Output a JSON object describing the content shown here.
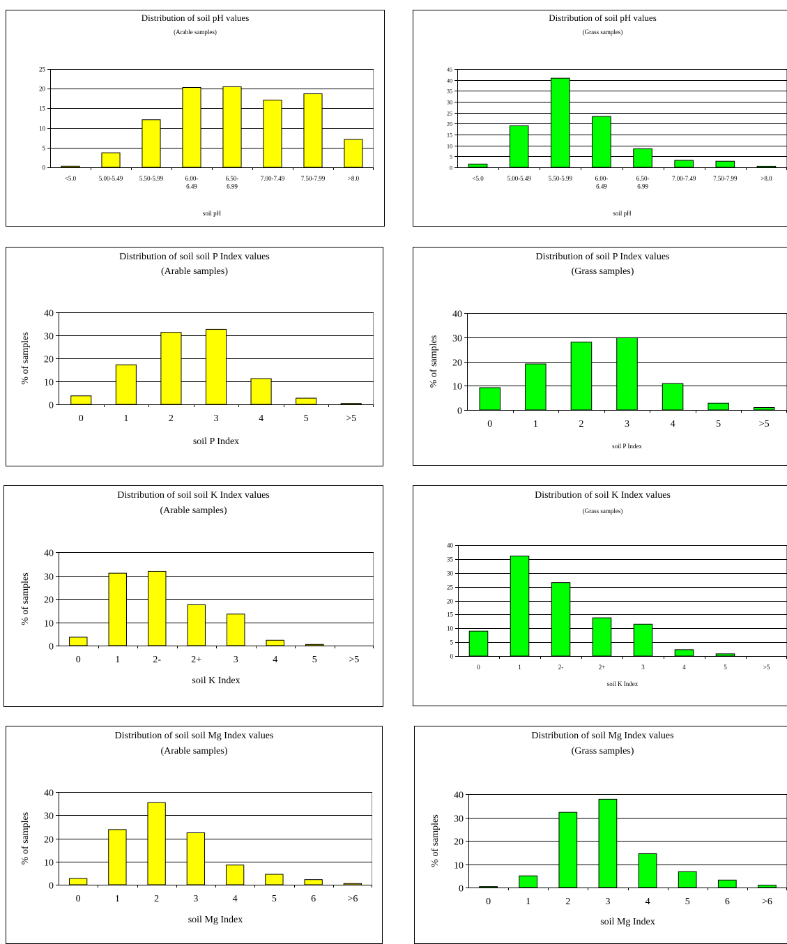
{
  "colors": {
    "arable": "#ffff00",
    "grass": "#00ff00",
    "outline": "#000000",
    "gridline": "#000000"
  },
  "chart_data": [
    {
      "id": "ph-arable",
      "type": "bar",
      "title": "Distribution of soil pH values",
      "subtitle": "(Arable samples)",
      "xlabel": "soil pH",
      "ylabel": "",
      "categories": [
        "<5.0",
        "5.00-5.49",
        "5.50-5.99",
        "6.00-\n6.49",
        "6.50-\n6.99",
        "7.00-7.49",
        "7.50-7.99",
        ">8.0"
      ],
      "values": [
        0.3,
        3.7,
        12.1,
        20.3,
        20.5,
        17.1,
        18.7,
        7.1
      ],
      "ylim": [
        0,
        25
      ],
      "yticks": [
        0,
        5,
        10,
        15,
        20,
        25
      ],
      "grid": true,
      "legend": "none",
      "color": "arable"
    },
    {
      "id": "ph-grass",
      "type": "bar",
      "title": "Distribution of soil pH values",
      "subtitle": "(Grass samples)",
      "xlabel": "soil pH",
      "ylabel": "",
      "categories": [
        "<5.0",
        "5.00-5.49",
        "5.50-5.99",
        "6.00-\n6.49",
        "6.50-\n6.99",
        "7.00-7.49",
        "7.50-7.99",
        ">8.0"
      ],
      "values": [
        1.5,
        19.0,
        40.8,
        23.3,
        8.5,
        3.2,
        2.8,
        0.5
      ],
      "ylim": [
        0,
        45
      ],
      "yticks": [
        0,
        5,
        10,
        15,
        20,
        25,
        30,
        35,
        40,
        45
      ],
      "grid": true,
      "legend": "none",
      "color": "grass"
    },
    {
      "id": "p-arable",
      "type": "bar",
      "title": "Distribution of soil soil P Index values",
      "subtitle": "(Arable samples)",
      "xlabel": "soil P Index",
      "ylabel": "% of samples",
      "categories": [
        "0",
        "1",
        "2",
        "3",
        "4",
        "5",
        ">5"
      ],
      "values": [
        3.7,
        17.2,
        31.3,
        32.6,
        11.2,
        2.7,
        0.4
      ],
      "ylim": [
        0,
        40
      ],
      "yticks": [
        0,
        10,
        20,
        30,
        40
      ],
      "grid": true,
      "legend": "none",
      "color": "arable"
    },
    {
      "id": "p-grass",
      "type": "bar",
      "title": "Distribution of soil P Index values",
      "subtitle": "(Grass samples)",
      "xlabel": "soil P Index",
      "ylabel": "% of samples",
      "categories": [
        "0",
        "1",
        "2",
        "3",
        "4",
        "5",
        ">5"
      ],
      "values": [
        9.2,
        19.0,
        28.0,
        29.8,
        10.9,
        2.8,
        1.0
      ],
      "ylim": [
        0,
        40
      ],
      "yticks": [
        0,
        10,
        20,
        30,
        40
      ],
      "grid": true,
      "legend": "none",
      "color": "grass"
    },
    {
      "id": "k-arable",
      "type": "bar",
      "title": "Distribution of soil soil K Index values",
      "subtitle": "(Arable samples)",
      "xlabel": "soil K Index",
      "ylabel": "% of samples",
      "categories": [
        "0",
        "1",
        "2-",
        "2+",
        "3",
        "4",
        "5",
        ">5"
      ],
      "values": [
        3.6,
        31.0,
        31.8,
        17.5,
        13.5,
        2.3,
        0.5,
        0.0
      ],
      "ylim": [
        0,
        40
      ],
      "yticks": [
        0,
        10,
        20,
        30,
        40
      ],
      "grid": true,
      "legend": "none",
      "color": "arable"
    },
    {
      "id": "k-grass",
      "type": "bar",
      "title": "Distribution of soil K Index values",
      "subtitle": "(Grass samples)",
      "xlabel": "soil K Index",
      "ylabel": "",
      "categories": [
        "0",
        "1",
        "2-",
        "2+",
        "3",
        "4",
        "5",
        ">5"
      ],
      "values": [
        9.0,
        36.1,
        26.5,
        13.8,
        11.5,
        2.3,
        0.8,
        0.0
      ],
      "ylim": [
        0,
        40
      ],
      "yticks": [
        0,
        5,
        10,
        15,
        20,
        25,
        30,
        35,
        40
      ],
      "grid": true,
      "legend": "none",
      "color": "grass"
    },
    {
      "id": "mg-arable",
      "type": "bar",
      "title": "Distribution of soil soil Mg Index values",
      "subtitle": "(Arable samples)",
      "xlabel": "soil Mg Index",
      "ylabel": "% of samples",
      "categories": [
        "0",
        "1",
        "2",
        "3",
        "4",
        "5",
        "6",
        ">6"
      ],
      "values": [
        2.7,
        23.8,
        35.4,
        22.4,
        8.5,
        4.5,
        2.2,
        0.5
      ],
      "ylim": [
        0,
        40
      ],
      "yticks": [
        0,
        10,
        20,
        30,
        40
      ],
      "grid": true,
      "legend": "none",
      "color": "arable"
    },
    {
      "id": "mg-grass",
      "type": "bar",
      "title": "Distribution of soil Mg Index values",
      "subtitle": "(Grass samples)",
      "xlabel": "soil Mg Index",
      "ylabel": "% of samples",
      "categories": [
        "0",
        "1",
        "2",
        "3",
        "4",
        "5",
        "6",
        ">6"
      ],
      "values": [
        0.4,
        5.0,
        32.2,
        37.8,
        14.5,
        6.8,
        3.2,
        1.0
      ],
      "ylim": [
        0,
        40
      ],
      "yticks": [
        0,
        10,
        20,
        30,
        40
      ],
      "grid": true,
      "legend": "none",
      "color": "grass"
    }
  ]
}
